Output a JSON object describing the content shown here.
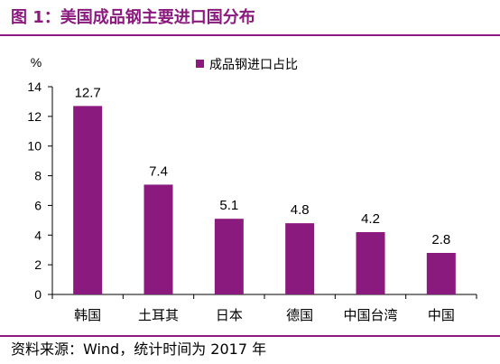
{
  "figure_title": "图 1：美国成品钢主要进口国分布",
  "source": "资料来源：Wind，统计时间为 2017 年",
  "colors": {
    "accent": "#8B1A7E",
    "bar": "#8B1A7E"
  },
  "chart_data": {
    "type": "bar",
    "unit": "%",
    "categories": [
      "韩国",
      "土耳其",
      "日本",
      "德国",
      "中国台湾",
      "中国"
    ],
    "series": [
      {
        "name": "成品钢进口占比",
        "values": [
          12.7,
          7.4,
          5.1,
          4.8,
          4.2,
          2.8
        ]
      }
    ],
    "ylim": [
      0,
      14
    ],
    "yticks": [
      0,
      2,
      4,
      6,
      8,
      10,
      12,
      14
    ],
    "grid": false,
    "legend": "top-right"
  }
}
